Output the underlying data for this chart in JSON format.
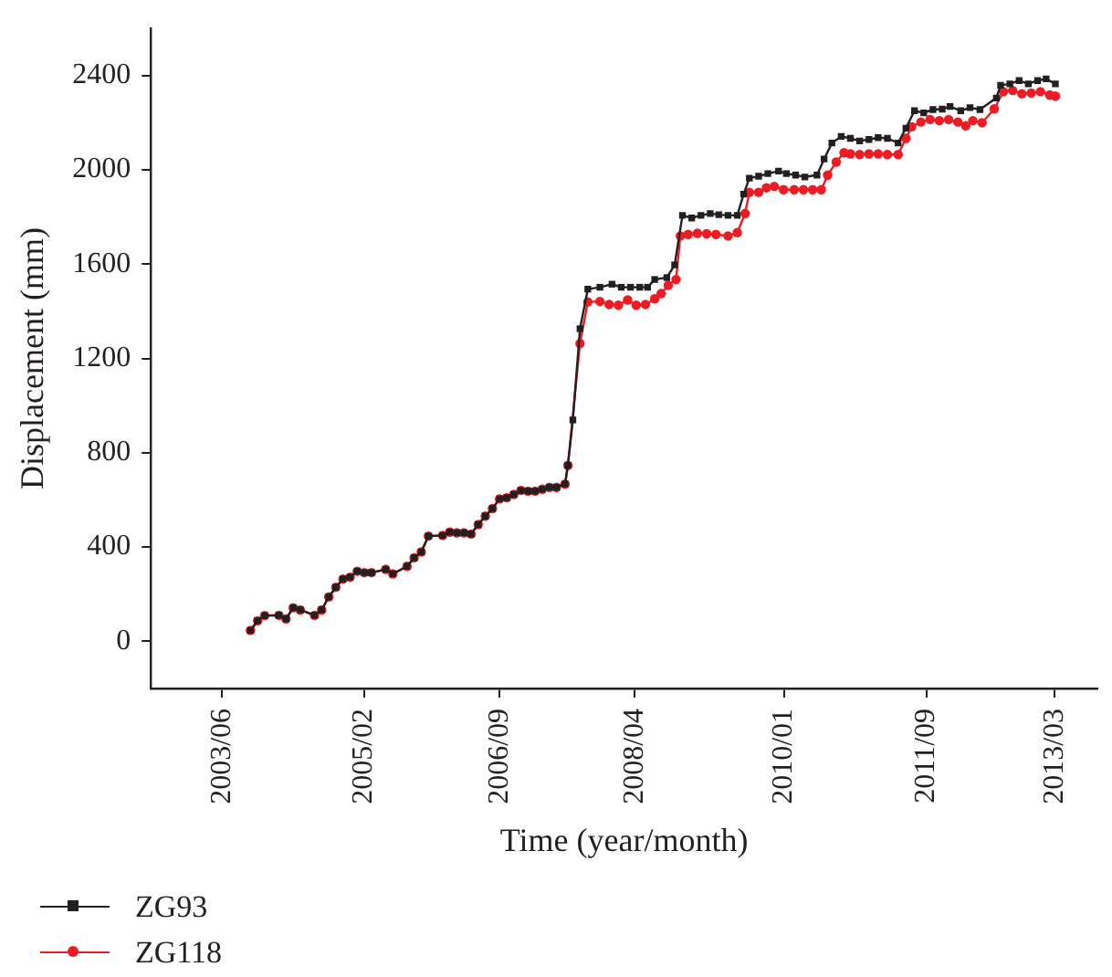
{
  "chart_data": {
    "type": "line",
    "xlabel": "Time (year/month)",
    "ylabel": "Displacement (mm)",
    "xlim": [
      "2002-08",
      "2013-09"
    ],
    "ylim": [
      -200,
      2600
    ],
    "xticks": [
      {
        "value": "2003-06",
        "label": "2003/06"
      },
      {
        "value": "2005-02",
        "label": "2005/02"
      },
      {
        "value": "2006-09",
        "label": "2006/09"
      },
      {
        "value": "2008-04",
        "label": "2008/04"
      },
      {
        "value": "2010-01",
        "label": "2010/01"
      },
      {
        "value": "2011-09",
        "label": "2011/09"
      },
      {
        "value": "2013-03",
        "label": "2013/03"
      }
    ],
    "yticks": [
      0,
      400,
      800,
      1200,
      1600,
      2000,
      2400
    ],
    "grid": false,
    "legend": "bottom left",
    "line_style": "solid",
    "series": [
      {
        "name": "ZG93",
        "color": "#231f20",
        "marker": "square",
        "x": [
          "2003-10",
          "2003-11",
          "2003-12",
          "2004-02",
          "2004-03",
          "2004-04",
          "2004-05",
          "2004-07",
          "2004-08",
          "2004-09",
          "2004-10",
          "2004-11",
          "2004-12",
          "2005-01",
          "2005-02",
          "2005-03",
          "2005-05",
          "2005-06",
          "2005-08",
          "2005-09",
          "2005-10",
          "2005-11",
          "2006-01",
          "2006-02",
          "2006-03",
          "2006-04",
          "2006-05",
          "2006-06",
          "2006-07",
          "2006-08",
          "2006-09",
          "2006-10",
          "2006-11",
          "2006-12",
          "2007-01",
          "2007-02",
          "2007-03",
          "2007-04",
          "2007-05",
          "2007-06-07",
          "2007-06-19",
          "2007-07-10",
          "2007-08-10",
          "2007-09-13",
          "2007-11-04",
          "2007-12-25",
          "2008-02-04",
          "2008-03-13",
          "2008-04-22",
          "2008-05-25",
          "2008-06-25",
          "2008-08-16",
          "2008-09-19",
          "2008-10-22",
          "2008-12-01",
          "2009-01-10",
          "2009-02-19",
          "2009-03-25",
          "2009-05-04",
          "2009-06-13",
          "2009-07-10",
          "2009-08-04",
          "2009-09-13",
          "2009-10-22",
          "2009-12-07",
          "2010-01-10",
          "2010-02-19",
          "2010-03-28",
          "2010-05-19",
          "2010-06-19",
          "2010-07-22",
          "2010-09-01",
          "2010-10-10",
          "2010-11-19",
          "2010-12-28",
          "2011-02-07",
          "2011-03-16",
          "2011-05-01",
          "2011-06-04",
          "2011-07-10",
          "2011-08-19",
          "2011-09-28",
          "2011-11-07",
          "2011-12-10",
          "2012-01-25",
          "2012-03-04",
          "2012-04-16",
          "2012-06-25",
          "2012-07-13",
          "2012-08-22",
          "2012-10-01",
          "2012-11-10",
          "2012-12-19",
          "2013-01-25",
          "2013-03-04"
        ],
        "values": [
          46,
          87,
          109,
          110,
          95,
          142,
          133,
          110,
          133,
          188,
          229,
          264,
          272,
          297,
          291,
          291,
          305,
          286,
          318,
          354,
          379,
          446,
          449,
          463,
          460,
          460,
          455,
          495,
          531,
          563,
          604,
          609,
          623,
          640,
          637,
          637,
          645,
          653,
          653,
          667,
          746,
          939,
          1326,
          1494,
          1502,
          1515,
          1502,
          1502,
          1502,
          1502,
          1535,
          1543,
          1597,
          1807,
          1796,
          1807,
          1815,
          1810,
          1807,
          1807,
          1897,
          1965,
          1973,
          1984,
          1995,
          1984,
          1978,
          1970,
          1978,
          2046,
          2114,
          2142,
          2134,
          2123,
          2129,
          2137,
          2134,
          2114,
          2177,
          2251,
          2242,
          2256,
          2258,
          2269,
          2251,
          2264,
          2256,
          2305,
          2359,
          2365,
          2379,
          2365,
          2379,
          2386,
          2365
        ]
      },
      {
        "name": "ZG118",
        "color": "#ed1c24",
        "marker": "circle",
        "x": [
          "2003-10",
          "2003-11",
          "2003-12",
          "2004-02",
          "2004-03",
          "2004-04",
          "2004-05",
          "2004-07",
          "2004-08",
          "2004-09",
          "2004-10",
          "2004-11",
          "2004-12",
          "2005-01",
          "2005-02",
          "2005-03",
          "2005-05",
          "2005-06",
          "2005-08",
          "2005-09",
          "2005-10",
          "2005-11",
          "2006-01",
          "2006-02",
          "2006-03",
          "2006-04",
          "2006-05",
          "2006-06",
          "2006-07",
          "2006-08",
          "2006-09",
          "2006-10",
          "2006-11",
          "2006-12",
          "2007-01",
          "2007-02",
          "2007-03",
          "2007-04",
          "2007-05",
          "2007-06-07",
          "2007-06-19",
          "2007-08-10",
          "2007-09-13",
          "2007-11-04",
          "2007-12-13",
          "2008-01-22",
          "2008-03-01",
          "2008-04-07",
          "2008-05-16",
          "2008-06-25",
          "2008-07-22",
          "2008-08-22",
          "2008-09-25",
          "2008-10-13",
          "2008-11-16",
          "2008-12-25",
          "2009-02-04",
          "2009-03-13",
          "2009-05-04",
          "2009-06-13",
          "2009-07-16",
          "2009-08-04",
          "2009-09-13",
          "2009-10-16",
          "2009-11-19",
          "2009-12-28",
          "2010-02-13",
          "2010-03-22",
          "2010-05-01",
          "2010-06-07",
          "2010-07-04",
          "2010-08-10",
          "2010-09-13",
          "2010-10-10",
          "2010-11-19",
          "2010-12-28",
          "2011-02-07",
          "2011-03-16",
          "2011-05-01",
          "2011-06-04",
          "2011-06-28",
          "2011-08-07",
          "2011-09-16",
          "2011-10-25",
          "2011-12-04",
          "2012-01-13",
          "2012-02-16",
          "2012-03-16",
          "2012-04-25",
          "2012-06-16",
          "2012-07-25",
          "2012-09-04",
          "2012-10-13",
          "2012-11-22",
          "2013-01-01",
          "2013-02-10",
          "2013-03-04"
        ],
        "values": [
          46,
          87,
          109,
          110,
          95,
          142,
          133,
          110,
          133,
          188,
          229,
          264,
          272,
          297,
          291,
          291,
          305,
          286,
          318,
          354,
          379,
          446,
          449,
          463,
          460,
          460,
          455,
          495,
          531,
          563,
          604,
          609,
          623,
          640,
          637,
          637,
          645,
          653,
          653,
          667,
          746,
          1263,
          1440,
          1442,
          1429,
          1426,
          1448,
          1426,
          1429,
          1453,
          1475,
          1510,
          1535,
          1720,
          1726,
          1731,
          1729,
          1726,
          1720,
          1734,
          1815,
          1905,
          1905,
          1924,
          1930,
          1916,
          1916,
          1916,
          1916,
          1916,
          1978,
          2033,
          2073,
          2068,
          2065,
          2068,
          2068,
          2065,
          2065,
          2134,
          2183,
          2203,
          2214,
          2209,
          2214,
          2203,
          2187,
          2209,
          2200,
          2259,
          2332,
          2337,
          2323,
          2326,
          2332,
          2318,
          2313
        ]
      }
    ]
  }
}
